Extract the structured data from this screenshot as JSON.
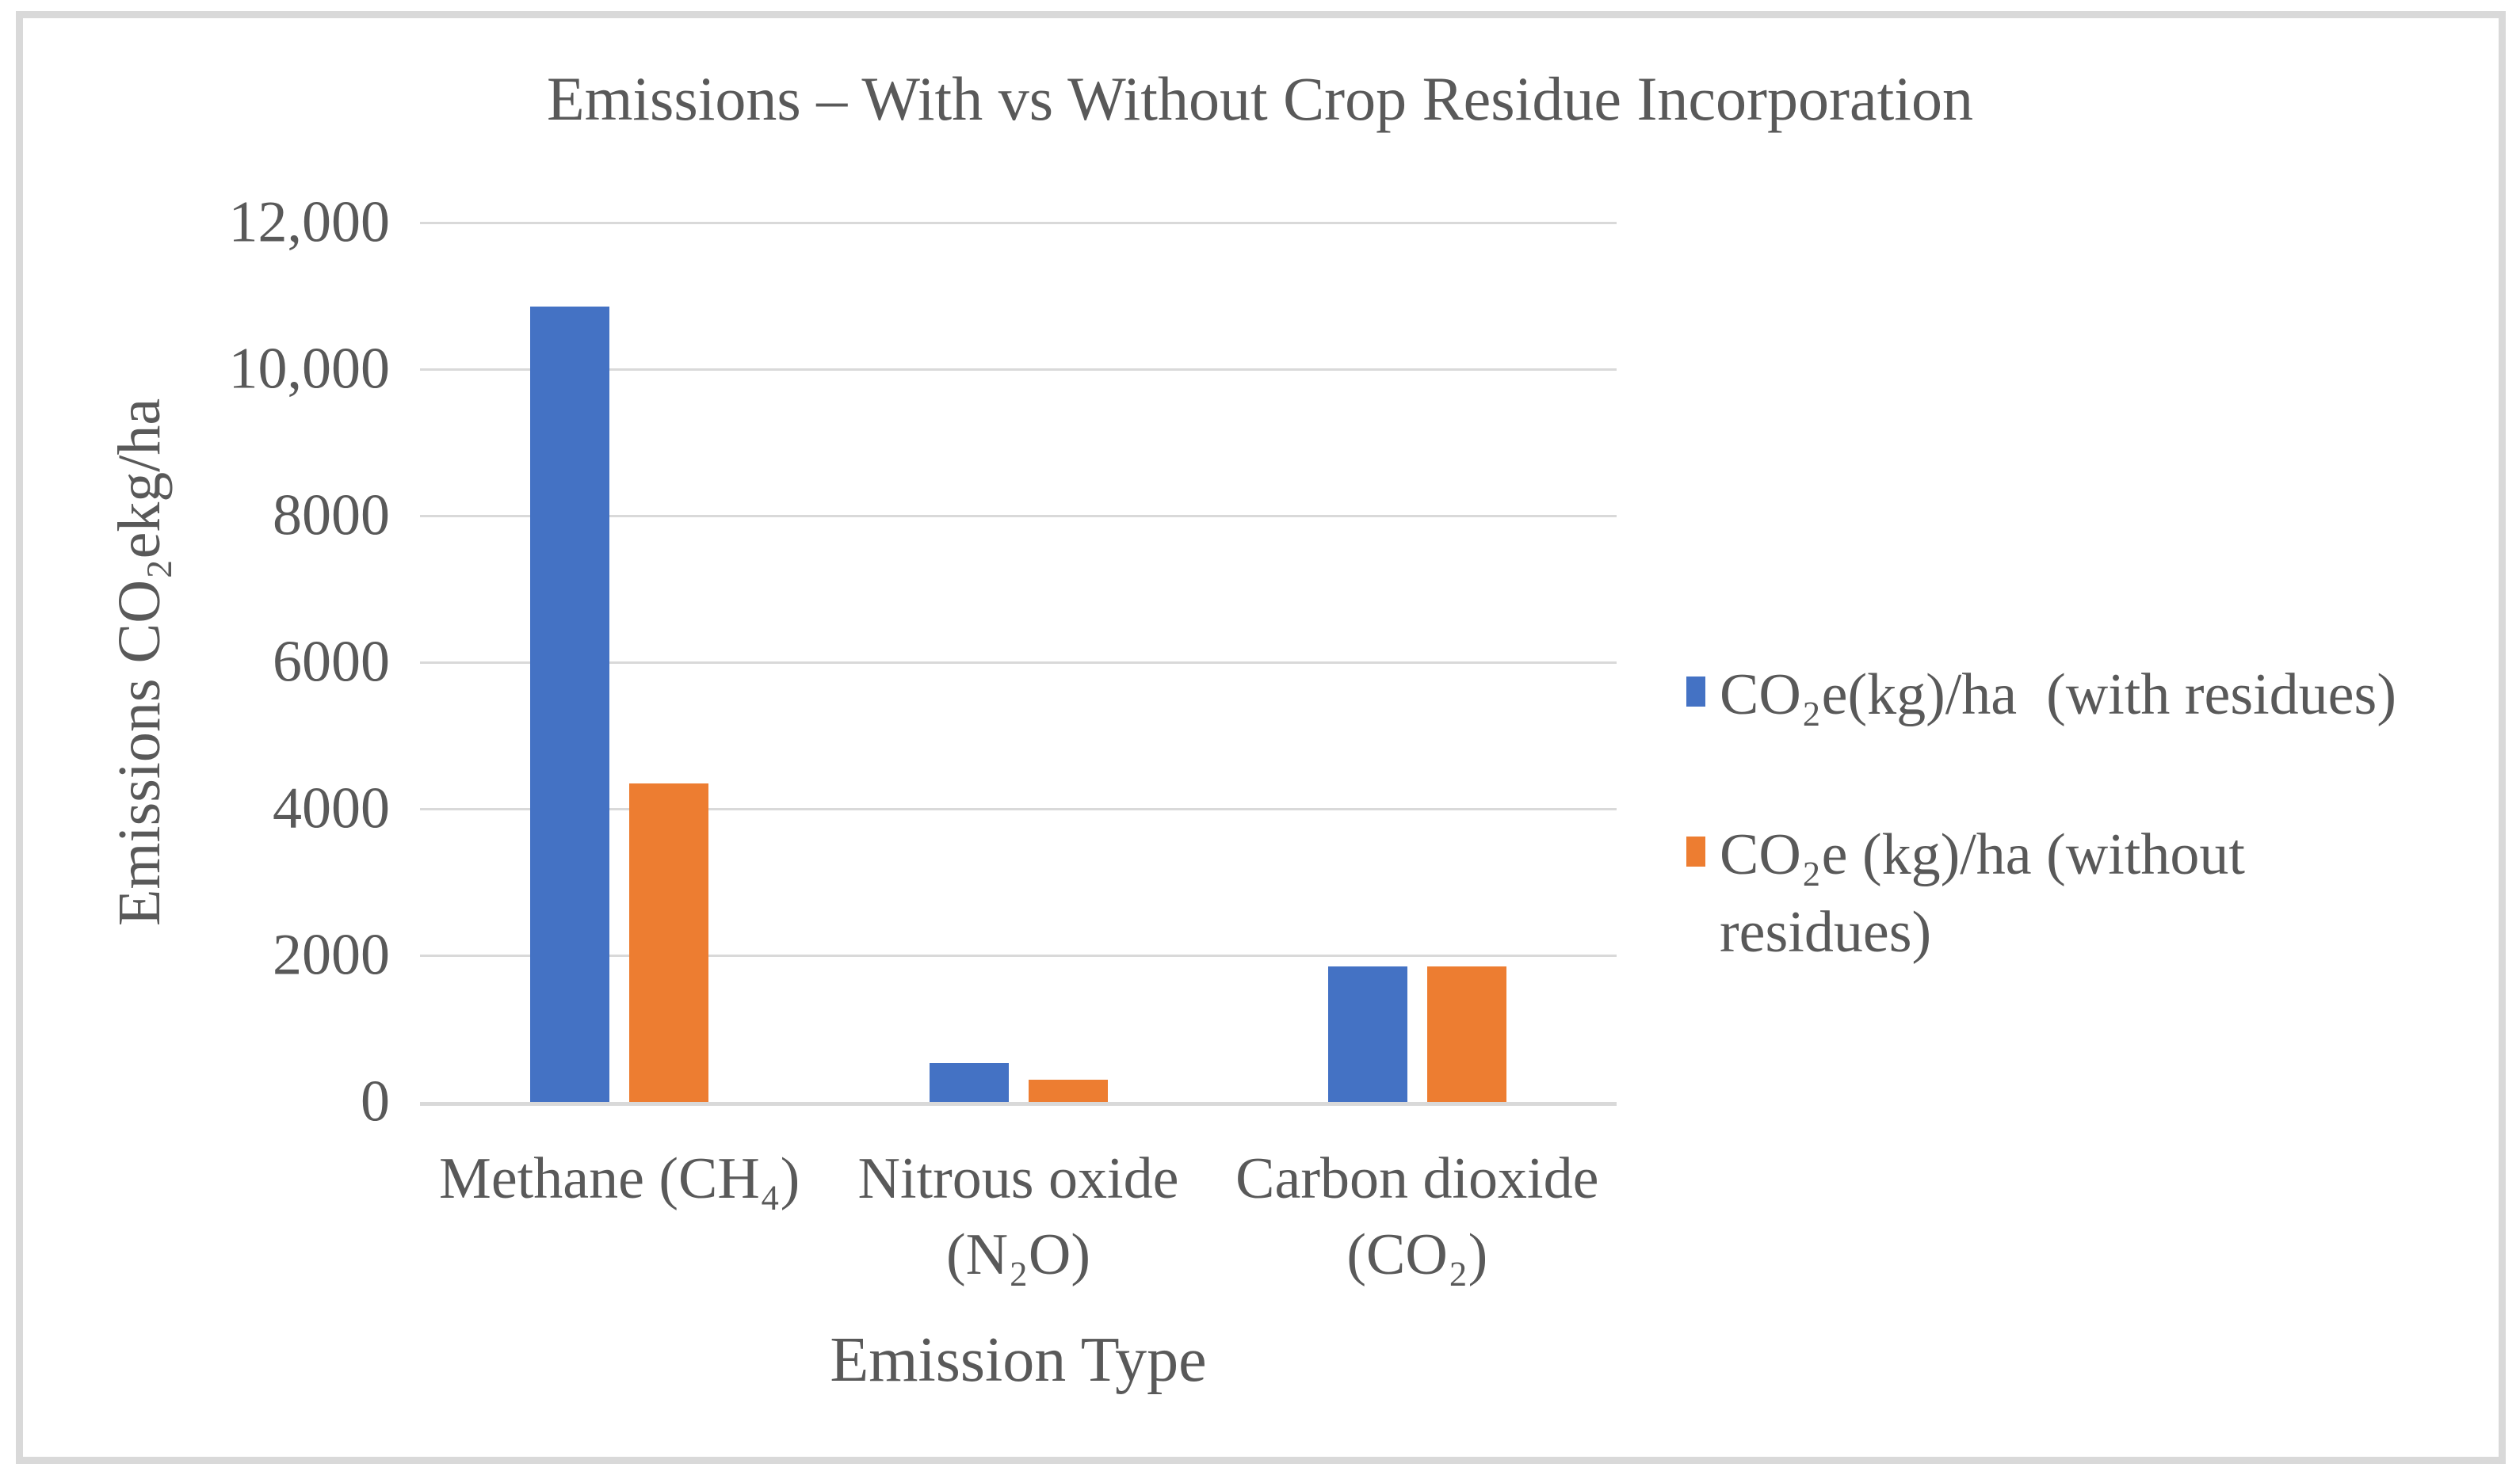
{
  "figure": {
    "background": "#FFFFFF",
    "border_color": "#D9D9D9",
    "text_color": "#595959"
  },
  "chart_data": {
    "type": "bar",
    "title": "Emissions – With vs Without Crop Residue Incorporation",
    "xlabel": "Emission Type",
    "ylabel": "Emissions CO₂ekg/ha",
    "categories": [
      "Methane (CH₄)",
      "Nitrous oxide (N₂O)",
      "Carbon dioxide (CO₂)"
    ],
    "category_label_lines": [
      [
        "Methane (CH₄)"
      ],
      [
        "Nitrous oxide",
        "(N₂O)"
      ],
      [
        "Carbon dioxide",
        "(CO₂)"
      ]
    ],
    "series": [
      {
        "name": "CO₂e(kg)/ha  (with residues)",
        "color": "#4472C4",
        "values": [
          10850,
          530,
          1850
        ]
      },
      {
        "name": "CO₂e (kg)/ha (without residues)",
        "color": "#ED7D31",
        "values": [
          4350,
          300,
          1850
        ]
      }
    ],
    "ylim": [
      0,
      12000
    ],
    "ytick_step": 2000,
    "ytick_labels": [
      "0",
      "2000",
      "4000",
      "6000",
      "8000",
      "10,000",
      "12,000"
    ],
    "grid": true,
    "gridline_color": "#D9D9D9",
    "legend_position": "right"
  },
  "legend": {
    "items": [
      {
        "color": "#4472C4",
        "lines": [
          "CO₂e(kg)/ha  (with residues)"
        ]
      },
      {
        "color": "#ED7D31",
        "lines": [
          "CO₂e (kg)/ha (without",
          "residues)"
        ]
      }
    ]
  }
}
